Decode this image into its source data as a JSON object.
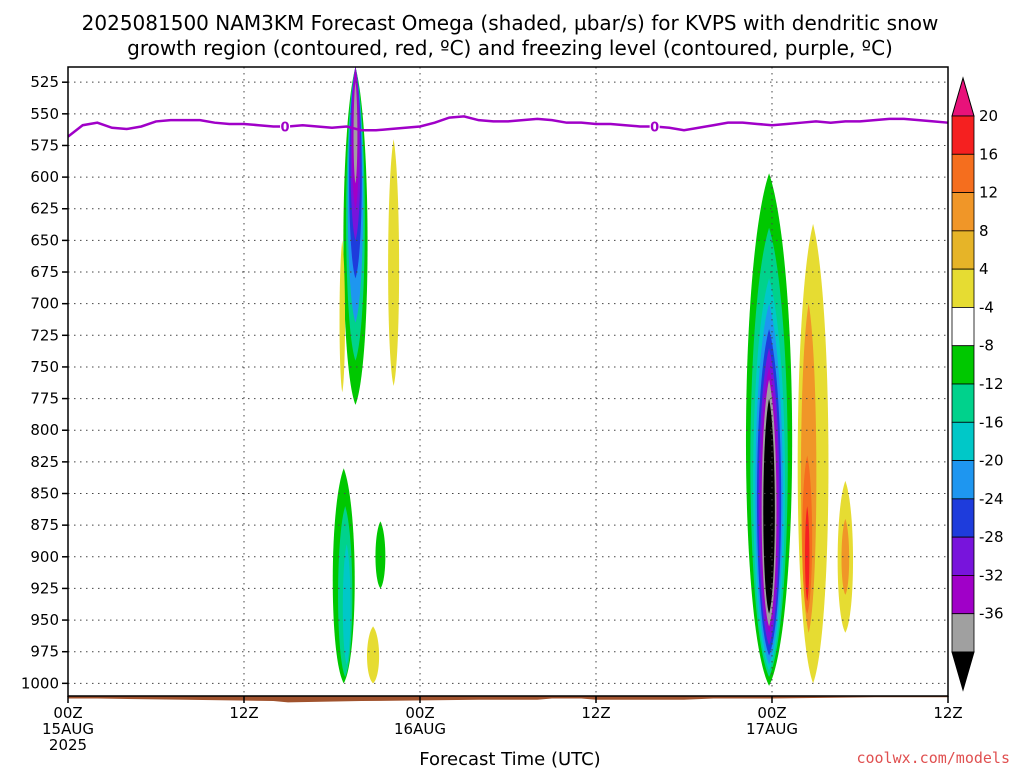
{
  "title_line1": "2025081500 NAM3KM Forecast Omega (shaded, µbar/s) for KVPS with dendritic snow",
  "title_line2": "growth region (contoured, red, ºC) and freezing level (contoured, purple, ºC)",
  "credit": "coolwx.com/models",
  "colors": {
    "freezing_line": "#a000c8",
    "terrain": "#a0522d"
  },
  "chart_data": {
    "type": "heatmap",
    "title": "2025081500 NAM3KM Forecast Omega (shaded, µbar/s) for KVPS with dendritic snow growth region (contoured, red, ºC) and freezing level (contoured, purple, ºC)",
    "xlabel": "Forecast Time (UTC)",
    "ylabel": "",
    "xlim": [
      0,
      60
    ],
    "ylim": [
      1010,
      513
    ],
    "y_ticks": [
      525,
      550,
      575,
      600,
      625,
      650,
      675,
      700,
      725,
      750,
      775,
      800,
      825,
      850,
      875,
      900,
      925,
      950,
      975,
      1000
    ],
    "x_ticks": [
      {
        "h": 0,
        "lines": [
          "00Z",
          "15AUG",
          "2025"
        ]
      },
      {
        "h": 12,
        "lines": [
          "12Z"
        ]
      },
      {
        "h": 24,
        "lines": [
          "00Z",
          "16AUG"
        ]
      },
      {
        "h": 36,
        "lines": [
          "12Z"
        ]
      },
      {
        "h": 48,
        "lines": [
          "00Z",
          "17AUG"
        ]
      },
      {
        "h": 60,
        "lines": [
          "12Z"
        ]
      }
    ],
    "colorbar": {
      "labels": [
        20,
        16,
        12,
        8,
        4,
        -4,
        -8,
        -12,
        -16,
        -20,
        -24,
        -28,
        -32,
        -36
      ],
      "colors": [
        "#e8127a",
        "#f52020",
        "#f56e1e",
        "#f09628",
        "#e6b428",
        "#e6dc32",
        "#ffffff",
        "#00c800",
        "#00d28c",
        "#00c8c8",
        "#1e96f0",
        "#1e3cdc",
        "#7814dc",
        "#a000c8",
        "#a0a0a0",
        "#000000"
      ]
    },
    "freezing_level": {
      "label": "0",
      "label_hours": [
        14.8,
        40.0
      ],
      "points": [
        [
          0,
          568
        ],
        [
          1,
          559
        ],
        [
          2,
          557
        ],
        [
          3,
          561
        ],
        [
          4,
          562
        ],
        [
          5,
          560
        ],
        [
          6,
          556
        ],
        [
          7,
          555
        ],
        [
          8,
          555
        ],
        [
          9,
          555
        ],
        [
          10,
          557
        ],
        [
          11,
          558
        ],
        [
          12,
          558
        ],
        [
          13,
          559
        ],
        [
          14,
          560
        ],
        [
          15,
          560
        ],
        [
          16,
          559
        ],
        [
          17,
          560
        ],
        [
          18,
          561
        ],
        [
          19,
          560
        ],
        [
          20,
          563
        ],
        [
          21,
          563
        ],
        [
          22,
          562
        ],
        [
          23,
          561
        ],
        [
          24,
          560
        ],
        [
          25,
          557
        ],
        [
          26,
          553
        ],
        [
          27,
          552
        ],
        [
          28,
          555
        ],
        [
          29,
          556
        ],
        [
          30,
          556
        ],
        [
          31,
          555
        ],
        [
          32,
          554
        ],
        [
          33,
          555
        ],
        [
          34,
          557
        ],
        [
          35,
          557
        ],
        [
          36,
          558
        ],
        [
          37,
          558
        ],
        [
          38,
          559
        ],
        [
          39,
          560
        ],
        [
          40,
          560
        ],
        [
          41,
          561
        ],
        [
          42,
          563
        ],
        [
          43,
          561
        ],
        [
          44,
          559
        ],
        [
          45,
          557
        ],
        [
          46,
          557
        ],
        [
          47,
          558
        ],
        [
          48,
          559
        ],
        [
          49,
          558
        ],
        [
          50,
          557
        ],
        [
          51,
          556
        ],
        [
          52,
          557
        ],
        [
          53,
          556
        ],
        [
          54,
          556
        ],
        [
          55,
          555
        ],
        [
          56,
          554
        ],
        [
          57,
          554
        ],
        [
          58,
          555
        ],
        [
          59,
          556
        ],
        [
          60,
          557
        ]
      ]
    },
    "omega_regions": [
      {
        "color": "#00c800",
        "center_h": 19.6,
        "top": 513,
        "bottom": 780,
        "width_h": 2.2
      },
      {
        "color": "#00d28c",
        "center_h": 19.6,
        "top": 513,
        "bottom": 745,
        "width_h": 1.7
      },
      {
        "color": "#1e96f0",
        "center_h": 19.6,
        "top": 513,
        "bottom": 715,
        "width_h": 1.4
      },
      {
        "color": "#1e3cdc",
        "center_h": 19.6,
        "top": 513,
        "bottom": 680,
        "width_h": 1.15
      },
      {
        "color": "#7814dc",
        "center_h": 19.6,
        "top": 513,
        "bottom": 650,
        "width_h": 0.9
      },
      {
        "color": "#a000c8",
        "center_h": 19.6,
        "top": 513,
        "bottom": 625,
        "width_h": 0.65
      },
      {
        "color": "#a0a0a0",
        "center_h": 19.6,
        "top": 525,
        "bottom": 605,
        "width_h": 0.35
      },
      {
        "color": "#e6dc32",
        "center_h": 18.7,
        "top": 650,
        "bottom": 770,
        "width_h": 0.5
      },
      {
        "color": "#e6dc32",
        "center_h": 22.2,
        "top": 570,
        "bottom": 765,
        "width_h": 1.0
      },
      {
        "color": "#00c800",
        "center_h": 18.8,
        "top": 830,
        "bottom": 1000,
        "width_h": 2.0
      },
      {
        "color": "#00d28c",
        "center_h": 18.9,
        "top": 860,
        "bottom": 995,
        "width_h": 1.3
      },
      {
        "color": "#00c8c8",
        "center_h": 19.0,
        "top": 890,
        "bottom": 985,
        "width_h": 0.7
      },
      {
        "color": "#00c800",
        "center_h": 21.3,
        "top": 872,
        "bottom": 925,
        "width_h": 0.9
      },
      {
        "color": "#e6dc32",
        "center_h": 20.8,
        "top": 955,
        "bottom": 1000,
        "width_h": 1.1
      },
      {
        "color": "#00c800",
        "center_h": 47.8,
        "top": 597,
        "bottom": 1002,
        "width_h": 4.2
      },
      {
        "color": "#00d28c",
        "center_h": 47.8,
        "top": 640,
        "bottom": 995,
        "width_h": 3.4
      },
      {
        "color": "#00c8c8",
        "center_h": 47.8,
        "top": 680,
        "bottom": 990,
        "width_h": 2.9
      },
      {
        "color": "#1e96f0",
        "center_h": 47.8,
        "top": 700,
        "bottom": 985,
        "width_h": 2.5
      },
      {
        "color": "#1e3cdc",
        "center_h": 47.8,
        "top": 720,
        "bottom": 978,
        "width_h": 2.2
      },
      {
        "color": "#7814dc",
        "center_h": 47.8,
        "top": 735,
        "bottom": 970,
        "width_h": 1.9
      },
      {
        "color": "#a000c8",
        "center_h": 47.8,
        "top": 750,
        "bottom": 960,
        "width_h": 1.6
      },
      {
        "color": "#a0a0a0",
        "center_h": 47.8,
        "top": 760,
        "bottom": 955,
        "width_h": 1.35
      },
      {
        "color": "#000000",
        "center_h": 47.8,
        "top": 775,
        "bottom": 945,
        "width_h": 1.05
      },
      {
        "color": "#e6dc32",
        "center_h": 50.8,
        "top": 637,
        "bottom": 1000,
        "width_h": 2.8
      },
      {
        "color": "#f09628",
        "center_h": 50.5,
        "top": 700,
        "bottom": 960,
        "width_h": 1.4
      },
      {
        "color": "#f56e1e",
        "center_h": 50.4,
        "top": 820,
        "bottom": 945,
        "width_h": 0.9
      },
      {
        "color": "#f52020",
        "center_h": 50.4,
        "top": 860,
        "bottom": 935,
        "width_h": 0.4
      },
      {
        "color": "#e6dc32",
        "center_h": 53.0,
        "top": 840,
        "bottom": 960,
        "width_h": 1.4
      },
      {
        "color": "#f09628",
        "center_h": 53.0,
        "top": 870,
        "bottom": 930,
        "width_h": 0.7
      }
    ],
    "terrain": [
      [
        0,
        1012
      ],
      [
        2,
        1012
      ],
      [
        8,
        1013
      ],
      [
        14,
        1014
      ],
      [
        15,
        1015
      ],
      [
        20,
        1014
      ],
      [
        28,
        1013
      ],
      [
        32,
        1013
      ],
      [
        33,
        1012
      ],
      [
        35,
        1012
      ],
      [
        36,
        1013
      ],
      [
        41,
        1013
      ],
      [
        42,
        1013
      ],
      [
        44,
        1012
      ],
      [
        48,
        1012
      ],
      [
        55,
        1011
      ],
      [
        60,
        1011
      ]
    ]
  }
}
